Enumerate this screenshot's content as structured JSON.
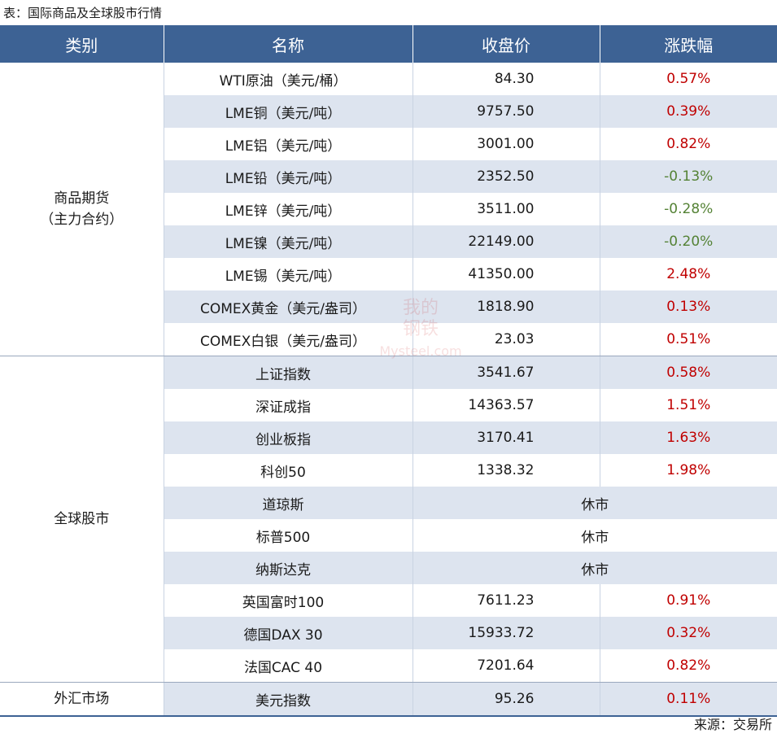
{
  "caption": "表：国际商品及全球股市行情",
  "headers": [
    "类别",
    "名称",
    "收盘价",
    "涨跌幅"
  ],
  "groups": {
    "commodities": "商品期货\n（主力合约）",
    "stocks": "全球股市",
    "fx": "外汇市场"
  },
  "rows": [
    {
      "name": "WTI原油（美元/桶）",
      "price": "84.30",
      "change": "0.57%",
      "dir": "up"
    },
    {
      "name": "LME铜（美元/吨）",
      "price": "9757.50",
      "change": "0.39%",
      "dir": "up"
    },
    {
      "name": "LME铝（美元/吨）",
      "price": "3001.00",
      "change": "0.82%",
      "dir": "up"
    },
    {
      "name": "LME铅（美元/吨）",
      "price": "2352.50",
      "change": "-0.13%",
      "dir": "down"
    },
    {
      "name": "LME锌（美元/吨）",
      "price": "3511.00",
      "change": "-0.28%",
      "dir": "down"
    },
    {
      "name": "LME镍（美元/吨）",
      "price": "22149.00",
      "change": "-0.20%",
      "dir": "down"
    },
    {
      "name": "LME锡（美元/吨）",
      "price": "41350.00",
      "change": "2.48%",
      "dir": "up"
    },
    {
      "name": "COMEX黄金（美元/盎司）",
      "price": "1818.90",
      "change": "0.13%",
      "dir": "up"
    },
    {
      "name": "COMEX白银（美元/盎司）",
      "price": "23.03",
      "change": "0.51%",
      "dir": "up"
    },
    {
      "name": "上证指数",
      "price": "3541.67",
      "change": "0.58%",
      "dir": "up"
    },
    {
      "name": "深证成指",
      "price": "14363.57",
      "change": "1.51%",
      "dir": "up"
    },
    {
      "name": "创业板指",
      "price": "3170.41",
      "change": "1.63%",
      "dir": "up"
    },
    {
      "name": "科创50",
      "price": "1338.32",
      "change": "1.98%",
      "dir": "up"
    },
    {
      "name": "道琼斯",
      "closed": "休市"
    },
    {
      "name": "标普500",
      "closed": "休市"
    },
    {
      "name": "纳斯达克",
      "closed": "休市"
    },
    {
      "name": "英国富时100",
      "price": "7611.23",
      "change": "0.91%",
      "dir": "up"
    },
    {
      "name": "德国DAX 30",
      "price": "15933.72",
      "change": "0.32%",
      "dir": "up"
    },
    {
      "name": "法国CAC 40",
      "price": "7201.64",
      "change": "0.82%",
      "dir": "up"
    },
    {
      "name": "美元指数",
      "price": "95.26",
      "change": "0.11%",
      "dir": "up"
    }
  ],
  "colors": {
    "header_bg": "#3d6294",
    "row_alt": "#dde4ef",
    "up": "#c00000",
    "down": "#548235"
  },
  "watermark": "我的钢铁 Mysteel.com",
  "source": "来源：交易所"
}
